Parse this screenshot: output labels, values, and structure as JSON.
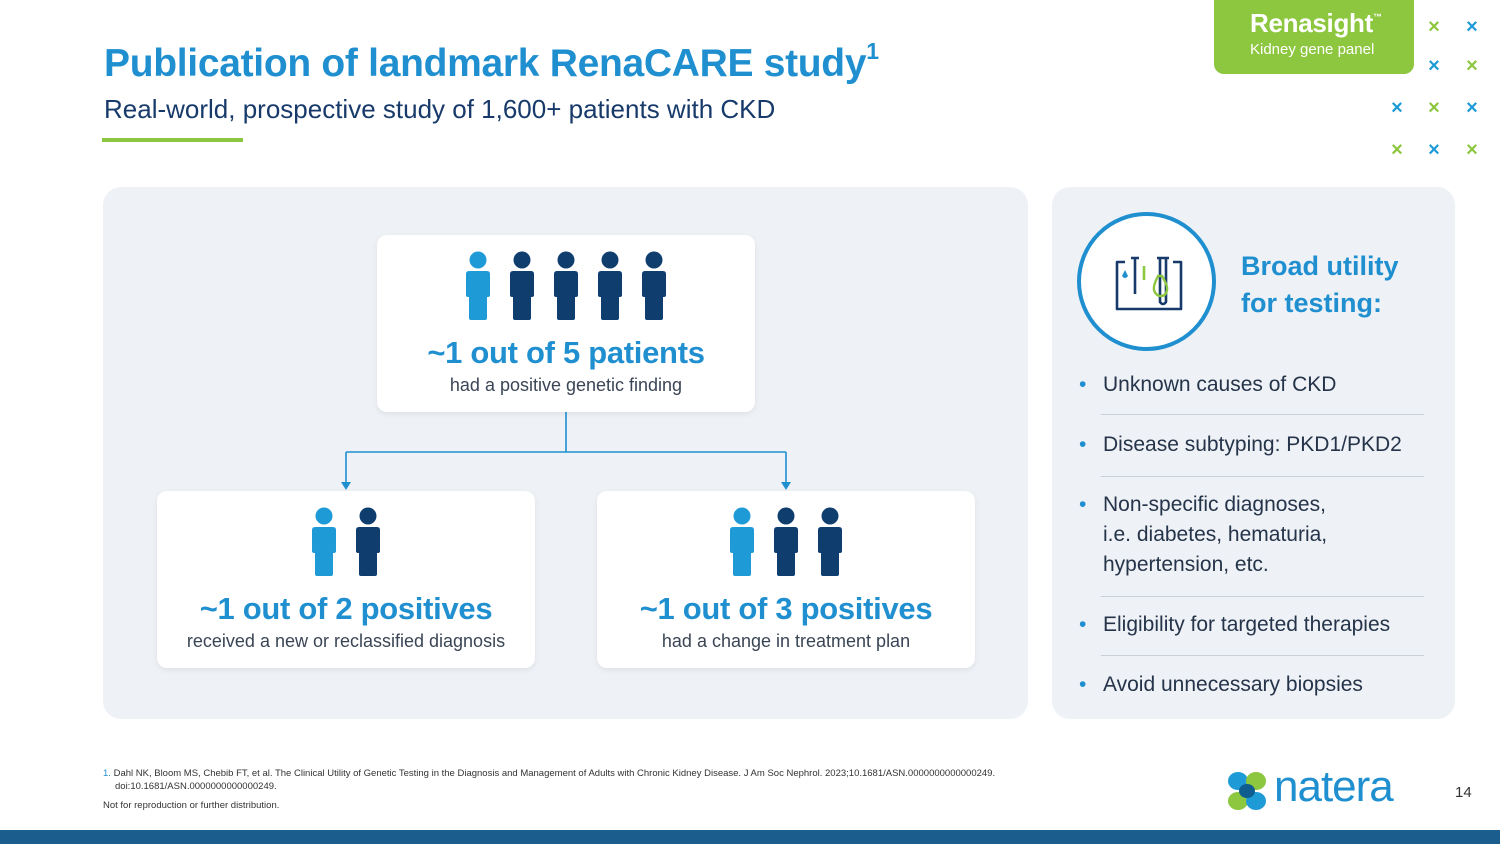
{
  "header": {
    "title": "Publication of landmark RenaCARE study",
    "title_sup": "1",
    "subtitle": "Real-world, prospective study of 1,600+ patients with CKD"
  },
  "brand": {
    "name": "Renasight",
    "tm": "™",
    "tagline": "Kidney gene panel"
  },
  "colors": {
    "accent_blue": "#1f8fd0",
    "dark_navy": "#0f3d6e",
    "light_blue": "#1e9bd7",
    "green": "#8dc63f",
    "panel_bg": "#eef1f5"
  },
  "cards": {
    "top": {
      "headline": "~1 out of 5 patients",
      "sub": "had a positive genetic finding",
      "highlighted": 1,
      "total": 5
    },
    "left": {
      "headline": "~1 out of 2 positives",
      "sub": "received a new or reclassified diagnosis",
      "highlighted": 1,
      "total": 2
    },
    "right": {
      "headline": "~1 out of 3 positives",
      "sub": "had a change in treatment plan",
      "highlighted": 1,
      "total": 3
    }
  },
  "utility": {
    "title_line1": "Broad utility",
    "title_line2": "for testing:",
    "icon": "test-tube-icon",
    "bullet_symbol": "•",
    "items": [
      {
        "lines": [
          "Unknown causes of CKD"
        ]
      },
      {
        "lines": [
          "Disease subtyping: PKD1/PKD2"
        ]
      },
      {
        "lines": [
          "Non-specific diagnoses,",
          "i.e. diabetes, hematuria,",
          "hypertension, etc."
        ]
      },
      {
        "lines": [
          "Eligibility for targeted therapies"
        ]
      },
      {
        "lines": [
          "Avoid unnecessary biopsies"
        ]
      }
    ]
  },
  "footer": {
    "ref_number": "1.",
    "ref_line1": "Dahl NK, Bloom MS, Chebib FT, et al. The Clinical Utility of Genetic Testing in the Diagnosis and Management of Adults with Chronic Kidney Disease. J Am Soc Nephrol. 2023;10.1681/ASN.0000000000000249.",
    "ref_line2": "doi:10.1681/ASN.0000000000000249.",
    "disclaimer": "Not for reproduction or further distribution.",
    "logo_text": "natera",
    "page_number": "14"
  }
}
